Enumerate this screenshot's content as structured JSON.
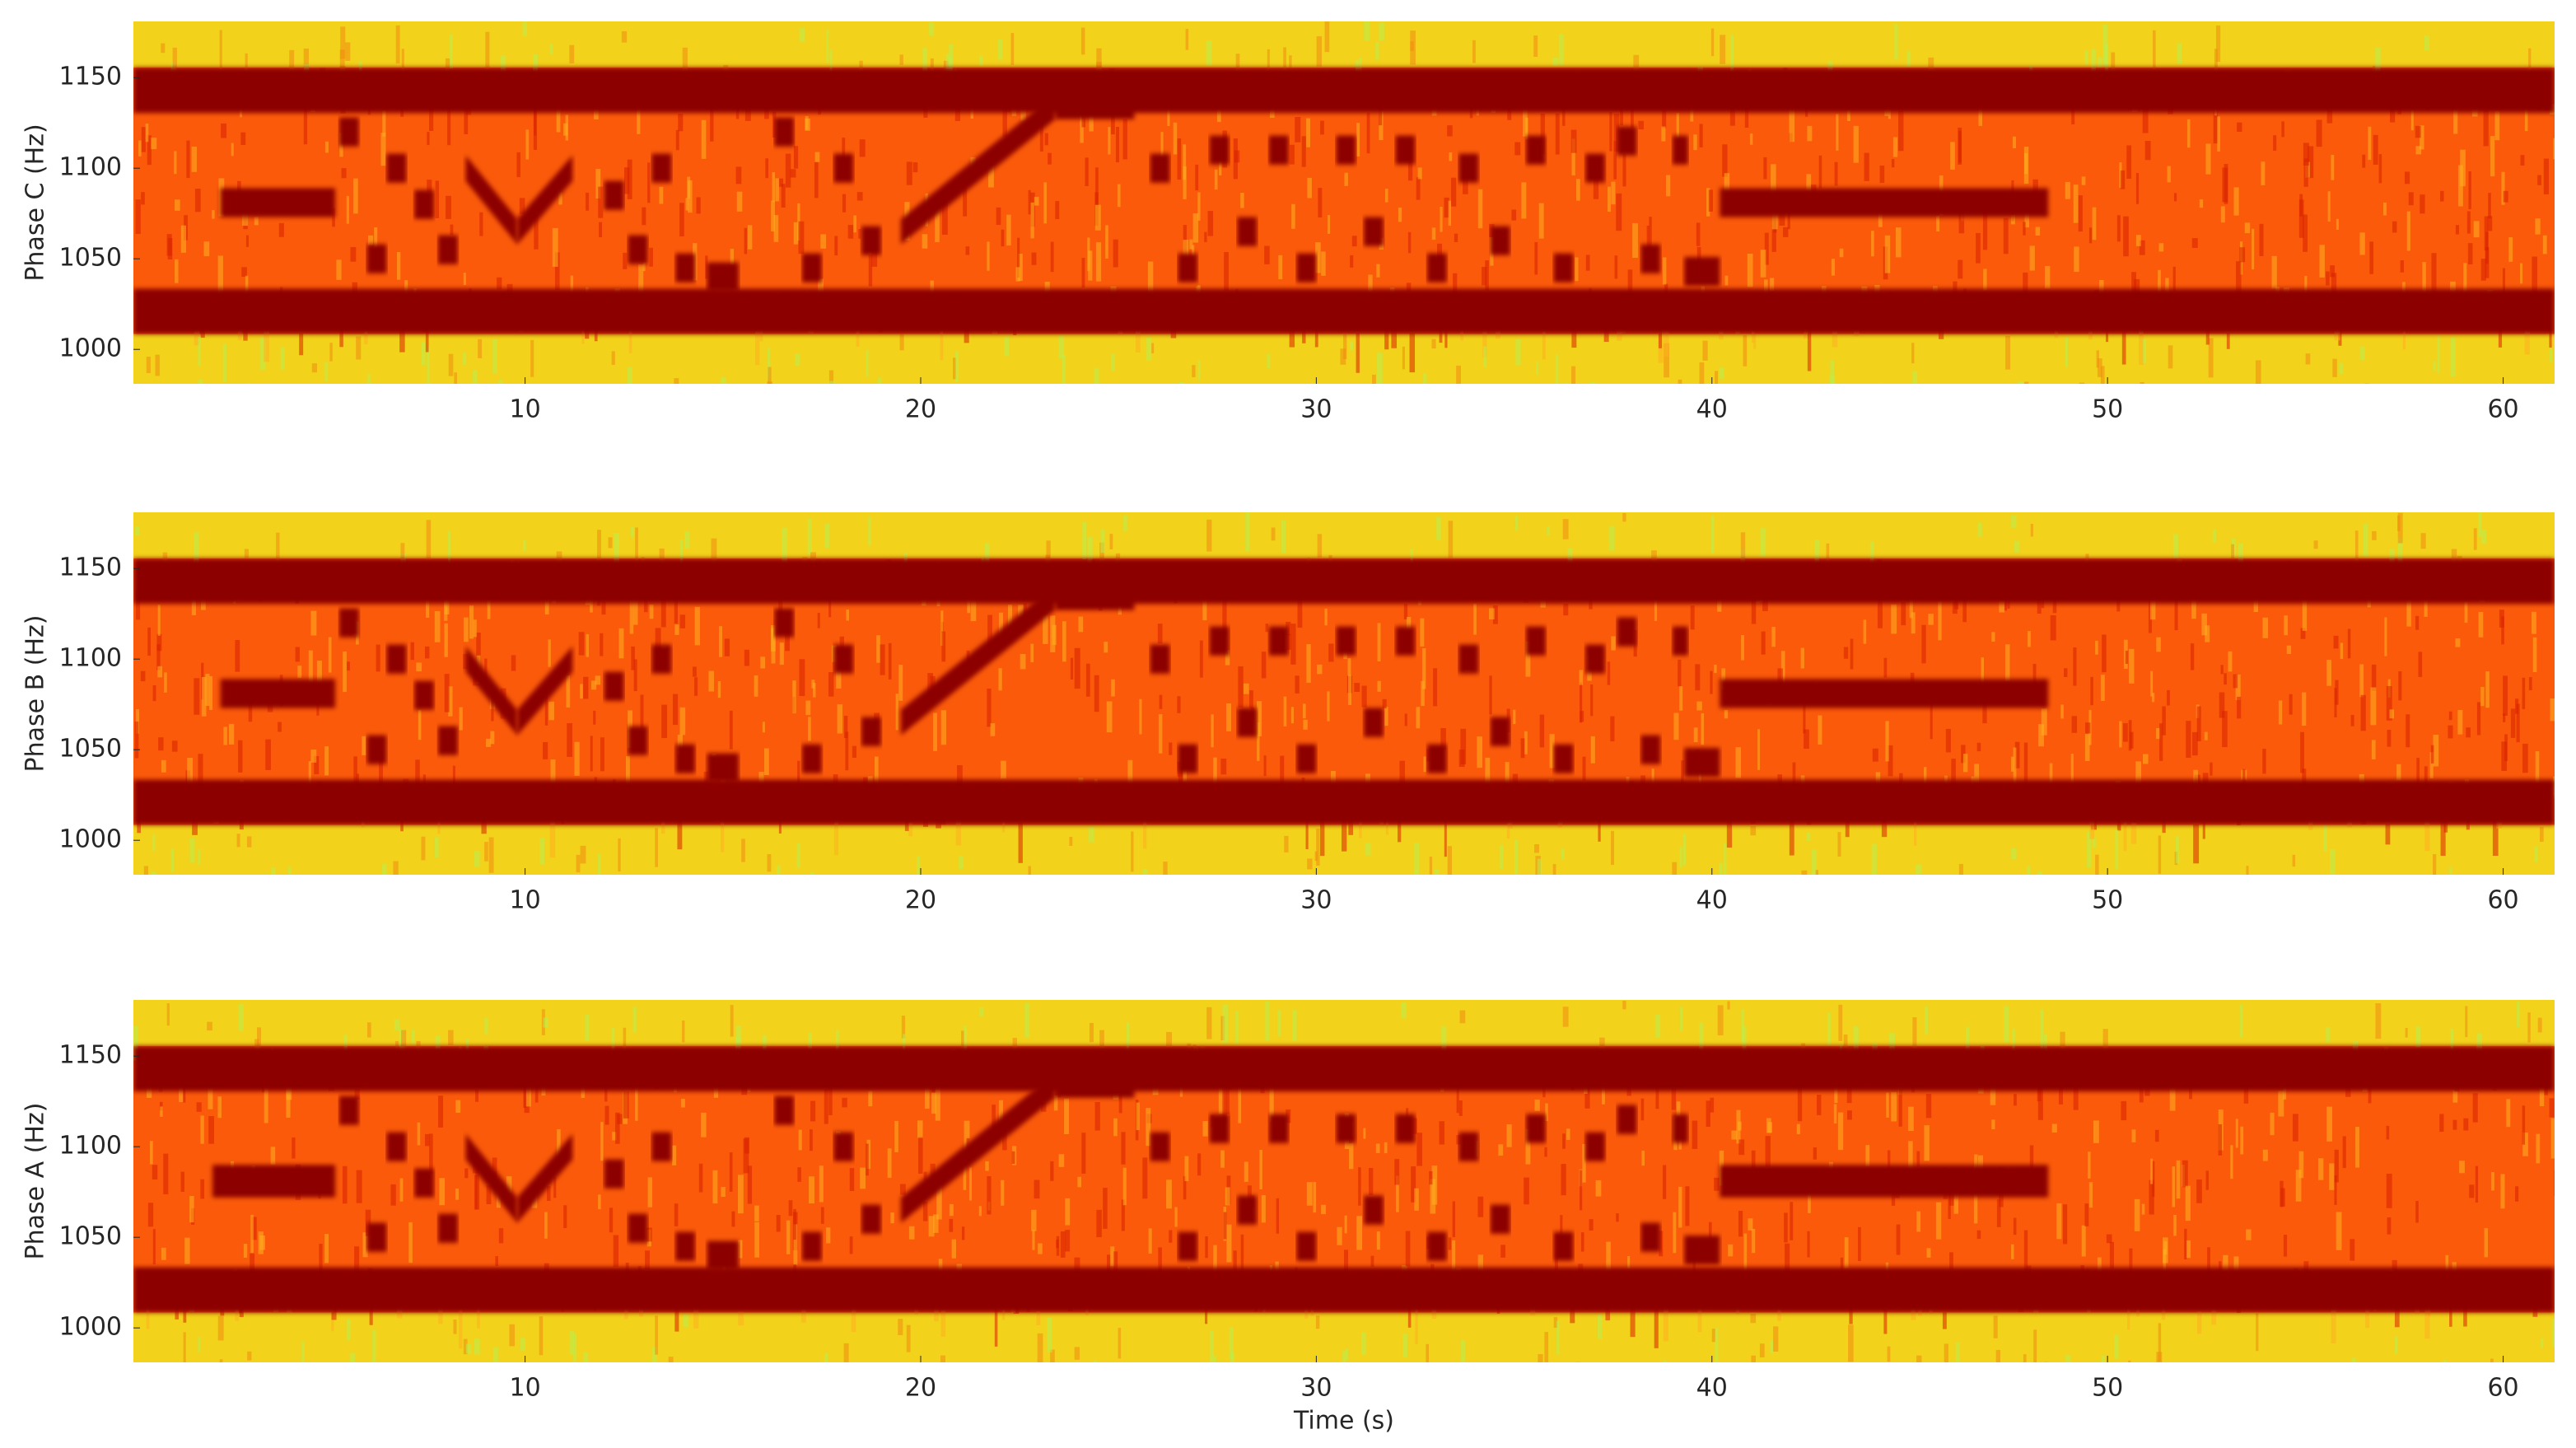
{
  "chart_data": [
    {
      "type": "spectrogram",
      "ylabel": "Phase C (Hz)",
      "xlim": [
        0.1,
        61.3
      ],
      "xticks": [
        10,
        20,
        30,
        40,
        50,
        60
      ],
      "ylim": [
        981,
        1181
      ],
      "yticks": [
        1000,
        1050,
        1100,
        1150
      ],
      "tone_color": "#8c0000",
      "tones": [
        [
          0.1,
          61.3,
          1143,
          1143,
          25
        ],
        [
          0.1,
          61.3,
          1021,
          1021,
          25
        ],
        [
          2.3,
          5.2,
          1081,
          1081,
          16
        ],
        [
          40.2,
          48.5,
          1081,
          1081,
          16
        ],
        [
          19.5,
          23.4,
          1065,
          1134,
          14
        ],
        [
          23.4,
          25.4,
          1134,
          1134,
          14
        ],
        [
          8.5,
          9.8,
          1100,
          1065,
          14
        ],
        [
          9.8,
          11.2,
          1065,
          1100,
          14
        ],
        [
          5.3,
          5.8,
          1120,
          1120,
          16
        ],
        [
          6.0,
          6.5,
          1050,
          1050,
          16
        ],
        [
          6.5,
          7.0,
          1100,
          1100,
          16
        ],
        [
          7.2,
          7.7,
          1080,
          1080,
          16
        ],
        [
          7.8,
          8.3,
          1055,
          1055,
          16
        ],
        [
          12.0,
          12.5,
          1085,
          1085,
          16
        ],
        [
          12.6,
          13.1,
          1055,
          1055,
          16
        ],
        [
          13.2,
          13.7,
          1100,
          1100,
          16
        ],
        [
          13.8,
          14.3,
          1045,
          1045,
          16
        ],
        [
          14.6,
          15.4,
          1040,
          1040,
          16
        ],
        [
          16.3,
          16.8,
          1120,
          1120,
          16
        ],
        [
          17.0,
          17.5,
          1045,
          1045,
          16
        ],
        [
          17.8,
          18.3,
          1100,
          1100,
          16
        ],
        [
          18.5,
          19.0,
          1060,
          1060,
          16
        ],
        [
          25.8,
          26.3,
          1100,
          1100,
          16
        ],
        [
          26.5,
          27.0,
          1045,
          1045,
          16
        ],
        [
          27.3,
          27.8,
          1110,
          1110,
          16
        ],
        [
          28.0,
          28.5,
          1065,
          1065,
          16
        ],
        [
          28.8,
          29.3,
          1110,
          1110,
          16
        ],
        [
          29.5,
          30.0,
          1045,
          1045,
          16
        ],
        [
          30.5,
          31.0,
          1110,
          1110,
          16
        ],
        [
          31.2,
          31.7,
          1065,
          1065,
          16
        ],
        [
          32.0,
          32.5,
          1110,
          1110,
          16
        ],
        [
          32.8,
          33.3,
          1045,
          1045,
          16
        ],
        [
          33.6,
          34.1,
          1100,
          1100,
          16
        ],
        [
          34.4,
          34.9,
          1060,
          1060,
          16
        ],
        [
          35.3,
          35.8,
          1110,
          1110,
          16
        ],
        [
          36.0,
          36.5,
          1045,
          1045,
          16
        ],
        [
          36.8,
          37.3,
          1100,
          1100,
          16
        ],
        [
          37.6,
          38.1,
          1115,
          1115,
          16
        ],
        [
          38.2,
          38.7,
          1050,
          1050,
          16
        ],
        [
          39.0,
          39.4,
          1110,
          1110,
          16
        ],
        [
          39.3,
          40.2,
          1043,
          1043,
          16
        ]
      ]
    },
    {
      "type": "spectrogram",
      "ylabel": "Phase B (Hz)",
      "xlim": [
        0.1,
        61.3
      ],
      "xticks": [
        10,
        20,
        30,
        40,
        50,
        60
      ],
      "ylim": [
        981,
        1181
      ],
      "yticks": [
        1000,
        1050,
        1100,
        1150
      ],
      "tone_color": "#8c0000",
      "tones": [
        [
          0.1,
          61.3,
          1143,
          1143,
          25
        ],
        [
          0.1,
          61.3,
          1021,
          1021,
          25
        ],
        [
          2.3,
          5.2,
          1081,
          1081,
          16
        ],
        [
          40.2,
          48.5,
          1081,
          1081,
          16
        ],
        [
          19.5,
          23.4,
          1065,
          1134,
          14
        ],
        [
          23.4,
          25.4,
          1134,
          1134,
          14
        ],
        [
          8.5,
          9.8,
          1100,
          1065,
          14
        ],
        [
          9.8,
          11.2,
          1065,
          1100,
          14
        ],
        [
          5.3,
          5.8,
          1120,
          1120,
          16
        ],
        [
          6.0,
          6.5,
          1050,
          1050,
          16
        ],
        [
          6.5,
          7.0,
          1100,
          1100,
          16
        ],
        [
          7.2,
          7.7,
          1080,
          1080,
          16
        ],
        [
          7.8,
          8.3,
          1055,
          1055,
          16
        ],
        [
          12.0,
          12.5,
          1085,
          1085,
          16
        ],
        [
          12.6,
          13.1,
          1055,
          1055,
          16
        ],
        [
          13.2,
          13.7,
          1100,
          1100,
          16
        ],
        [
          13.8,
          14.3,
          1045,
          1045,
          16
        ],
        [
          14.6,
          15.4,
          1040,
          1040,
          16
        ],
        [
          16.3,
          16.8,
          1120,
          1120,
          16
        ],
        [
          17.0,
          17.5,
          1045,
          1045,
          16
        ],
        [
          17.8,
          18.3,
          1100,
          1100,
          16
        ],
        [
          18.5,
          19.0,
          1060,
          1060,
          16
        ],
        [
          25.8,
          26.3,
          1100,
          1100,
          16
        ],
        [
          26.5,
          27.0,
          1045,
          1045,
          16
        ],
        [
          27.3,
          27.8,
          1110,
          1110,
          16
        ],
        [
          28.0,
          28.5,
          1065,
          1065,
          16
        ],
        [
          28.8,
          29.3,
          1110,
          1110,
          16
        ],
        [
          29.5,
          30.0,
          1045,
          1045,
          16
        ],
        [
          30.5,
          31.0,
          1110,
          1110,
          16
        ],
        [
          31.2,
          31.7,
          1065,
          1065,
          16
        ],
        [
          32.0,
          32.5,
          1110,
          1110,
          16
        ],
        [
          32.8,
          33.3,
          1045,
          1045,
          16
        ],
        [
          33.6,
          34.1,
          1100,
          1100,
          16
        ],
        [
          34.4,
          34.9,
          1060,
          1060,
          16
        ],
        [
          35.3,
          35.8,
          1110,
          1110,
          16
        ],
        [
          36.0,
          36.5,
          1045,
          1045,
          16
        ],
        [
          36.8,
          37.3,
          1100,
          1100,
          16
        ],
        [
          37.6,
          38.1,
          1115,
          1115,
          16
        ],
        [
          38.2,
          38.7,
          1050,
          1050,
          16
        ],
        [
          39.0,
          39.4,
          1110,
          1110,
          16
        ],
        [
          39.3,
          40.2,
          1043,
          1043,
          16
        ]
      ]
    },
    {
      "type": "spectrogram",
      "ylabel": "Phase A (Hz)",
      "xlabel": "Time (s)",
      "xlim": [
        0.1,
        61.3
      ],
      "xticks": [
        10,
        20,
        30,
        40,
        50,
        60
      ],
      "ylim": [
        981,
        1181
      ],
      "yticks": [
        1000,
        1050,
        1100,
        1150
      ],
      "tone_color": "#8c0000",
      "tones": [
        [
          0.1,
          61.3,
          1143,
          1143,
          25
        ],
        [
          0.1,
          61.3,
          1021,
          1021,
          25
        ],
        [
          2.1,
          5.2,
          1081,
          1081,
          18
        ],
        [
          40.2,
          48.5,
          1081,
          1081,
          18
        ],
        [
          19.5,
          23.4,
          1065,
          1134,
          14
        ],
        [
          23.4,
          25.4,
          1134,
          1134,
          14
        ],
        [
          8.5,
          9.8,
          1100,
          1065,
          14
        ],
        [
          9.8,
          11.2,
          1065,
          1100,
          14
        ],
        [
          5.3,
          5.8,
          1120,
          1120,
          16
        ],
        [
          6.0,
          6.5,
          1050,
          1050,
          16
        ],
        [
          6.5,
          7.0,
          1100,
          1100,
          16
        ],
        [
          7.2,
          7.7,
          1080,
          1080,
          16
        ],
        [
          7.8,
          8.3,
          1055,
          1055,
          16
        ],
        [
          12.0,
          12.5,
          1085,
          1085,
          16
        ],
        [
          12.6,
          13.1,
          1055,
          1055,
          16
        ],
        [
          13.2,
          13.7,
          1100,
          1100,
          16
        ],
        [
          13.8,
          14.3,
          1045,
          1045,
          16
        ],
        [
          14.6,
          15.4,
          1040,
          1040,
          16
        ],
        [
          16.3,
          16.8,
          1120,
          1120,
          16
        ],
        [
          17.0,
          17.5,
          1045,
          1045,
          16
        ],
        [
          17.8,
          18.3,
          1100,
          1100,
          16
        ],
        [
          18.5,
          19.0,
          1060,
          1060,
          16
        ],
        [
          25.8,
          26.3,
          1100,
          1100,
          16
        ],
        [
          26.5,
          27.0,
          1045,
          1045,
          16
        ],
        [
          27.3,
          27.8,
          1110,
          1110,
          16
        ],
        [
          28.0,
          28.5,
          1065,
          1065,
          16
        ],
        [
          28.8,
          29.3,
          1110,
          1110,
          16
        ],
        [
          29.5,
          30.0,
          1045,
          1045,
          16
        ],
        [
          30.5,
          31.0,
          1110,
          1110,
          16
        ],
        [
          31.2,
          31.7,
          1065,
          1065,
          16
        ],
        [
          32.0,
          32.5,
          1110,
          1110,
          16
        ],
        [
          32.8,
          33.3,
          1045,
          1045,
          16
        ],
        [
          33.6,
          34.1,
          1100,
          1100,
          16
        ],
        [
          34.4,
          34.9,
          1060,
          1060,
          16
        ],
        [
          35.3,
          35.8,
          1110,
          1110,
          16
        ],
        [
          36.0,
          36.5,
          1045,
          1045,
          16
        ],
        [
          36.8,
          37.3,
          1100,
          1100,
          16
        ],
        [
          37.6,
          38.1,
          1115,
          1115,
          16
        ],
        [
          38.2,
          38.7,
          1050,
          1050,
          16
        ],
        [
          39.0,
          39.4,
          1110,
          1110,
          16
        ],
        [
          39.3,
          40.2,
          1043,
          1043,
          16
        ]
      ]
    }
  ]
}
